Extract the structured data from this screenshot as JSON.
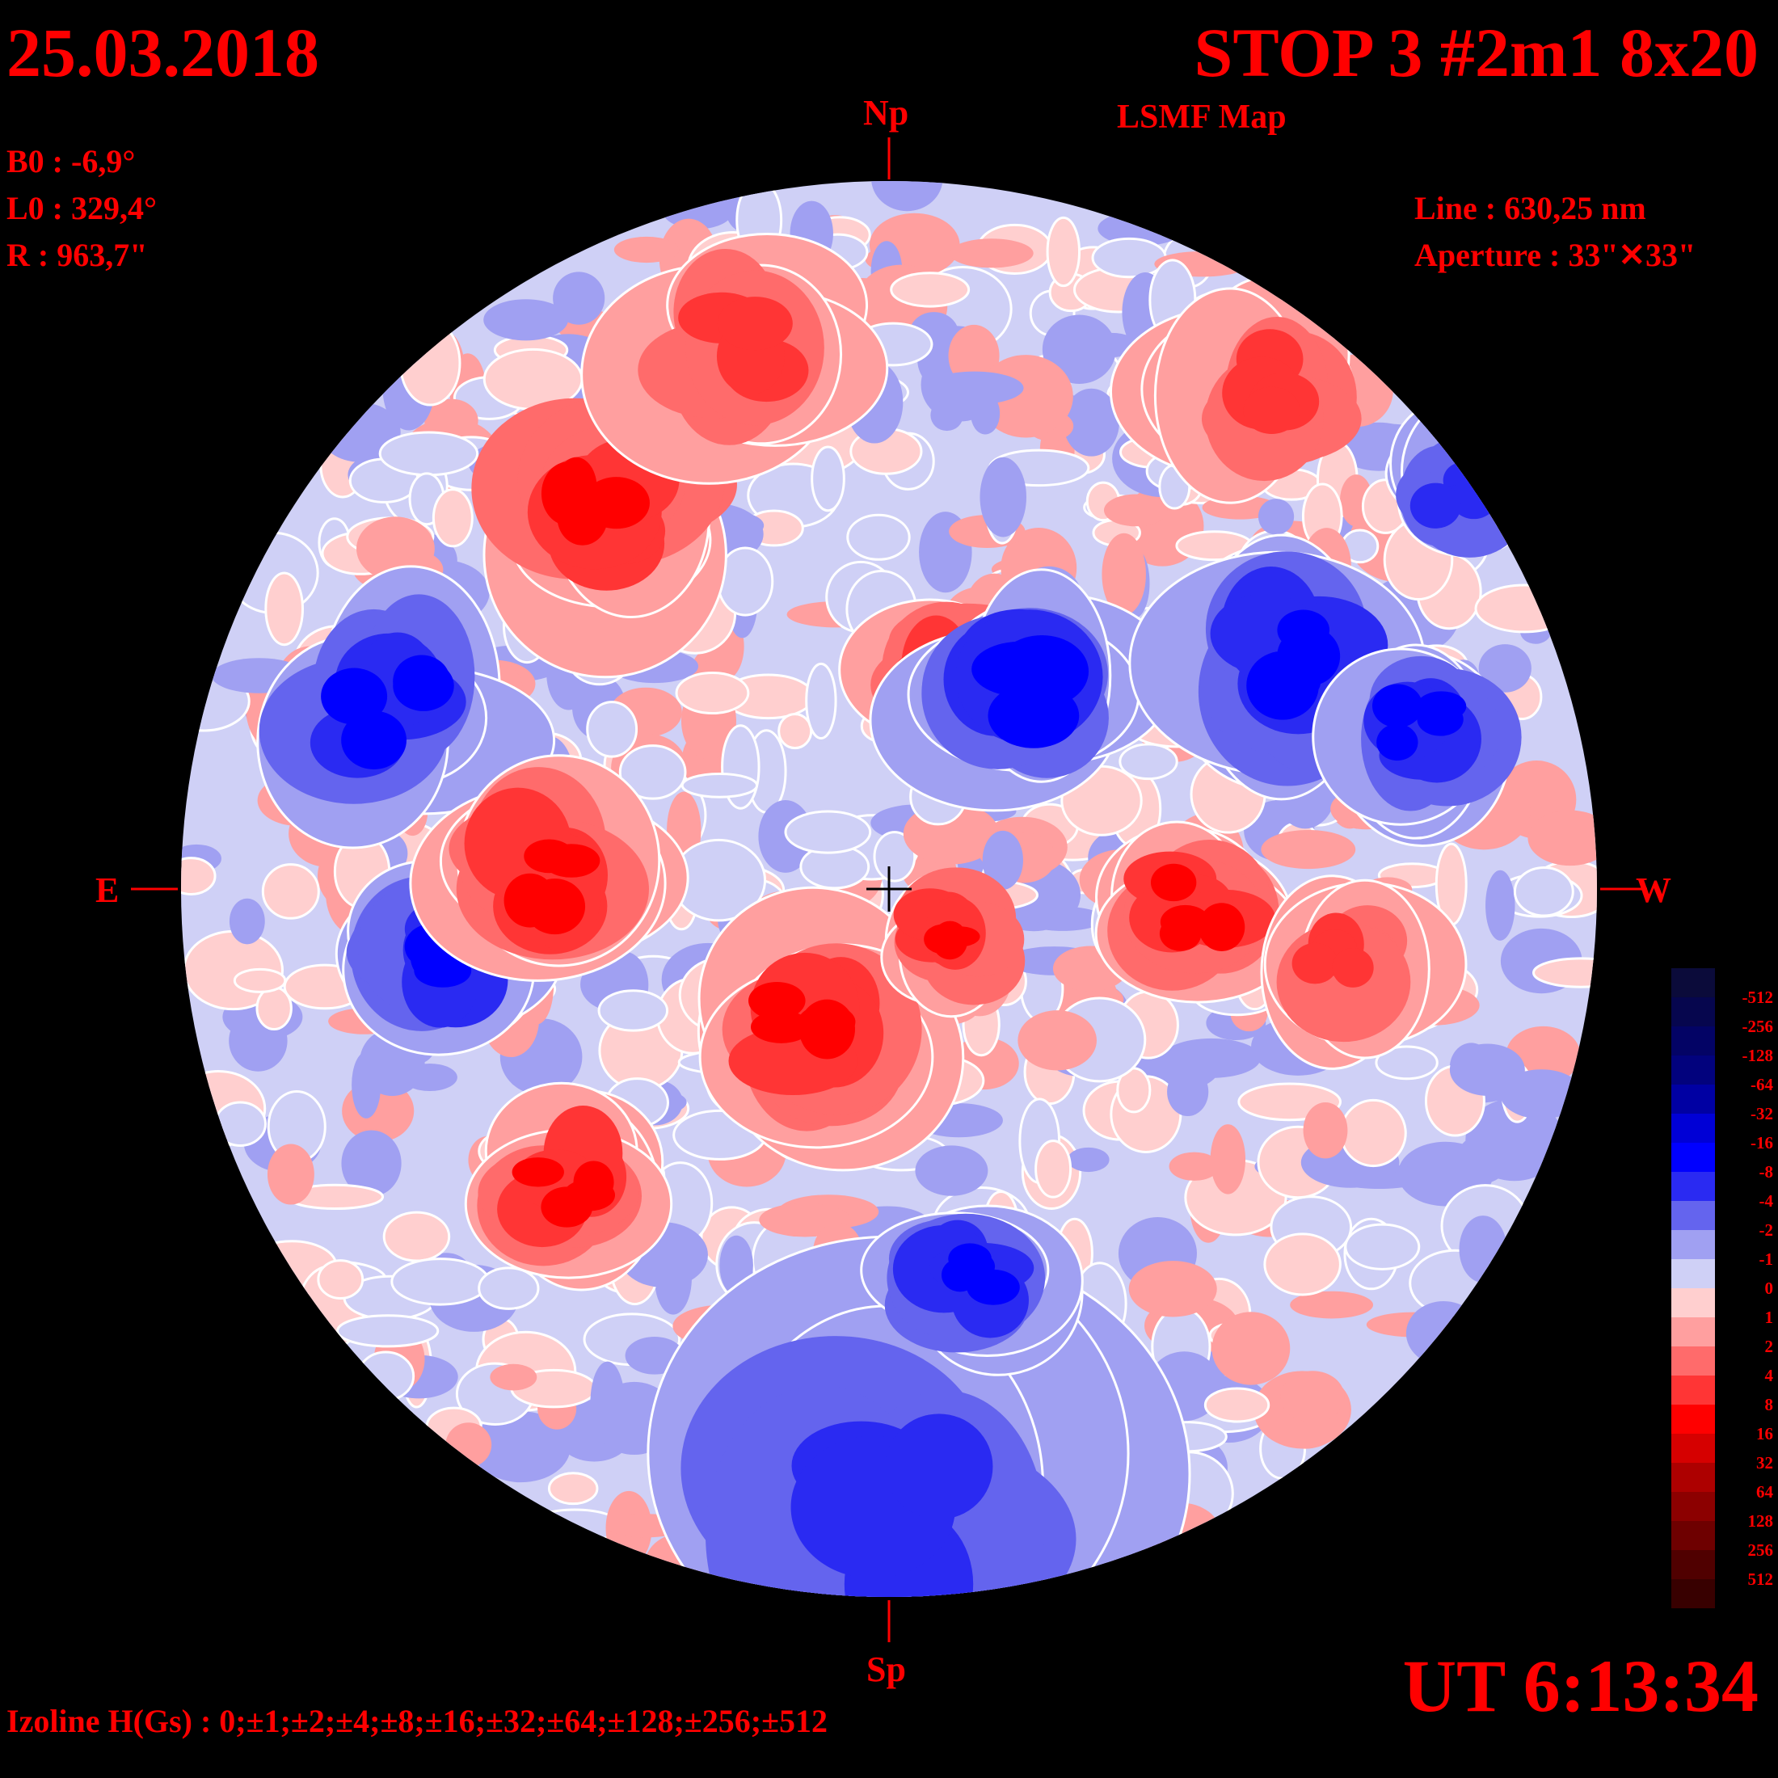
{
  "header": {
    "date": "25.03.2018",
    "title": "STOP 3 #2m1 8x20",
    "subtitle": "LSMF  Map"
  },
  "params": {
    "b0": "B0 : -6,9°",
    "l0": "L0 : 329,4°",
    "radius": "R  : 963,7\"",
    "line": "Line :  630,25 nm",
    "aperture": "Aperture : 33\"✕33\""
  },
  "directions": {
    "north": "Np",
    "south": "Sp",
    "east": "E",
    "west": "W"
  },
  "time": "UT 6:13:34",
  "izoline": "Izoline H(Gs) : 0;±1;±2;±4;±8;±16;±32;±64;±128;±256;±512",
  "legend": {
    "colors": [
      "#0b0b3a",
      "#06064e",
      "#030365",
      "#02027d",
      "#0000a3",
      "#0000d6",
      "#0000ff",
      "#2a2af2",
      "#6464ee",
      "#a0a0f2",
      "#cfd0f6",
      "#ffcfcf",
      "#ff9f9f",
      "#ff6b6b",
      "#ff3535",
      "#ff0000",
      "#d60000",
      "#ad0000",
      "#8c0000",
      "#6e0000",
      "#500000",
      "#380000"
    ],
    "labels": [
      "-512",
      "-256",
      "-128",
      "-64",
      "-32",
      "-16",
      "-8",
      "-4",
      "-2",
      "-1",
      "0",
      "1",
      "2",
      "4",
      "8",
      "16",
      "32",
      "64",
      "128",
      "256",
      "512"
    ]
  },
  "colors": {
    "text": "#ff0000",
    "background": "#000000",
    "contour": "#ffffff"
  }
}
